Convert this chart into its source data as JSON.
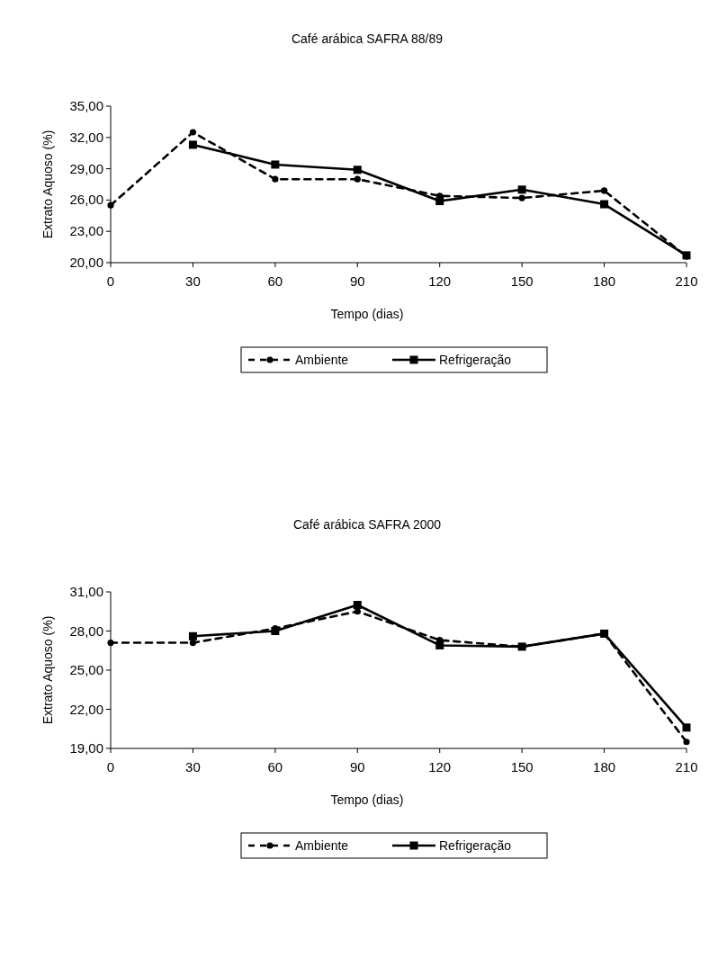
{
  "chart_data": [
    {
      "type": "line",
      "title": "Café arábica SAFRA 88/89",
      "xlabel": "Tempo (dias)",
      "ylabel": "Extrato Aquoso (%)",
      "x": [
        0,
        30,
        60,
        90,
        120,
        150,
        180,
        210
      ],
      "xlim": [
        0,
        210
      ],
      "xticks": [
        0,
        30,
        60,
        90,
        120,
        150,
        180,
        210
      ],
      "ylim": [
        20,
        35
      ],
      "yticks": [
        {
          "value": 20,
          "label": "20,00"
        },
        {
          "value": 23,
          "label": "23,00"
        },
        {
          "value": 26,
          "label": "26,00"
        },
        {
          "value": 29,
          "label": "29,00"
        },
        {
          "value": 32,
          "label": "32,00"
        },
        {
          "value": 35,
          "label": "35,00"
        }
      ],
      "legend": "bottom",
      "grid": false,
      "series": [
        {
          "name": "Ambiente",
          "color": "#000000",
          "marker": "circle",
          "line_style": "dashed",
          "values": [
            25.5,
            32.5,
            28.0,
            28.0,
            26.4,
            26.2,
            26.9,
            20.6
          ]
        },
        {
          "name": "Refrigeração",
          "color": "#000000",
          "marker": "square",
          "line_style": "solid",
          "values": [
            null,
            31.3,
            29.4,
            28.9,
            25.9,
            27.0,
            25.6,
            20.7
          ]
        }
      ]
    },
    {
      "type": "line",
      "title": "Café arábica SAFRA 2000",
      "xlabel": "Tempo (dias)",
      "ylabel": "Extrato Aquoso (%)",
      "x": [
        0,
        30,
        60,
        90,
        120,
        150,
        180,
        210
      ],
      "xlim": [
        0,
        210
      ],
      "xticks": [
        0,
        30,
        60,
        90,
        120,
        150,
        180,
        210
      ],
      "ylim": [
        19,
        31
      ],
      "yticks": [
        {
          "value": 19,
          "label": "19,00"
        },
        {
          "value": 22,
          "label": "22,00"
        },
        {
          "value": 25,
          "label": "25,00"
        },
        {
          "value": 28,
          "label": "28,00"
        },
        {
          "value": 31,
          "label": "31,00"
        }
      ],
      "legend": "bottom",
      "grid": false,
      "series": [
        {
          "name": "Ambiente",
          "color": "#000000",
          "marker": "circle",
          "line_style": "dashed",
          "values": [
            27.1,
            27.1,
            28.2,
            29.5,
            27.3,
            26.8,
            27.8,
            19.5
          ]
        },
        {
          "name": "Refrigeração",
          "color": "#000000",
          "marker": "square",
          "line_style": "solid",
          "values": [
            null,
            27.6,
            28.0,
            30.0,
            26.9,
            26.8,
            27.8,
            20.6
          ]
        }
      ]
    }
  ]
}
